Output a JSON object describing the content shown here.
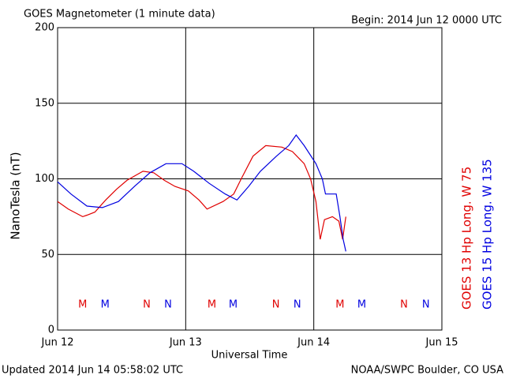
{
  "chart_data": {
    "type": "line",
    "title": "GOES Magnetometer (1 minute data)",
    "subtitle": "Begin:  2014 Jun 12 0000 UTC",
    "xlabel": "Universal Time",
    "ylabel": "NanoTesla (nT)",
    "footer_left": "Updated 2014 Jun 14 05:58:02 UTC",
    "footer_right": "NOAA/SWPC Boulder, CO USA",
    "xlim": [
      0,
      72
    ],
    "xticks": [
      {
        "value": 0,
        "label": "Jun 12"
      },
      {
        "value": 24,
        "label": "Jun 13"
      },
      {
        "value": 48,
        "label": "Jun 14"
      },
      {
        "value": 72,
        "label": "Jun 15"
      }
    ],
    "ylim": [
      0,
      200
    ],
    "yticks": [
      0,
      50,
      100,
      150,
      200
    ],
    "grid": true,
    "series": [
      {
        "name": "GOES 13 Hp  Long. W 75",
        "color": "#e00000",
        "x": [
          0,
          2,
          4.7,
          5.5,
          7,
          9,
          11,
          13,
          16,
          18,
          20,
          22,
          24.5,
          26.5,
          28,
          31,
          33,
          34.4,
          36.6,
          39,
          42,
          44,
          46.2,
          47.4,
          48.4,
          49.2,
          50,
          51.5,
          52.7,
          53.4,
          54
        ],
        "values": [
          85,
          80,
          75,
          76,
          78,
          86,
          93,
          99,
          105,
          104,
          99,
          95,
          92,
          86,
          80,
          85,
          90,
          100,
          115,
          122,
          121,
          118,
          110,
          100,
          85,
          60,
          73,
          75,
          72,
          60,
          75
        ]
      },
      {
        "name": "GOES 15 Hp  Long. W 135",
        "color": "#0000e0",
        "x": [
          0,
          2.5,
          5.5,
          8.4,
          11.4,
          14.4,
          17.3,
          20.3,
          23.3,
          25.5,
          28.4,
          31.4,
          33.6,
          35.8,
          38,
          41,
          43.3,
          44.7,
          46.2,
          48.4,
          49.6,
          50.2,
          52.2,
          52.9,
          53.5,
          54
        ],
        "values": [
          98,
          90,
          82,
          81,
          85,
          95,
          104,
          110,
          110,
          105,
          97,
          90,
          86,
          95,
          105,
          115,
          122,
          129,
          122,
          110,
          100,
          90,
          90,
          75,
          60,
          52
        ]
      }
    ],
    "annotations": [
      {
        "text": "M",
        "x": 4.7,
        "series": 0
      },
      {
        "text": "M",
        "x": 8.9,
        "series": 1
      },
      {
        "text": "N",
        "x": 16.7,
        "series": 0
      },
      {
        "text": "N",
        "x": 20.7,
        "series": 1
      },
      {
        "text": "M",
        "x": 28.9,
        "series": 0
      },
      {
        "text": "M",
        "x": 32.9,
        "series": 1
      },
      {
        "text": "N",
        "x": 40.9,
        "series": 0
      },
      {
        "text": "N",
        "x": 44.9,
        "series": 1
      },
      {
        "text": "M",
        "x": 52.9,
        "series": 0
      },
      {
        "text": "M",
        "x": 57,
        "series": 1
      },
      {
        "text": "N",
        "x": 64.9,
        "series": 0
      },
      {
        "text": "N",
        "x": 69,
        "series": 1
      }
    ]
  }
}
